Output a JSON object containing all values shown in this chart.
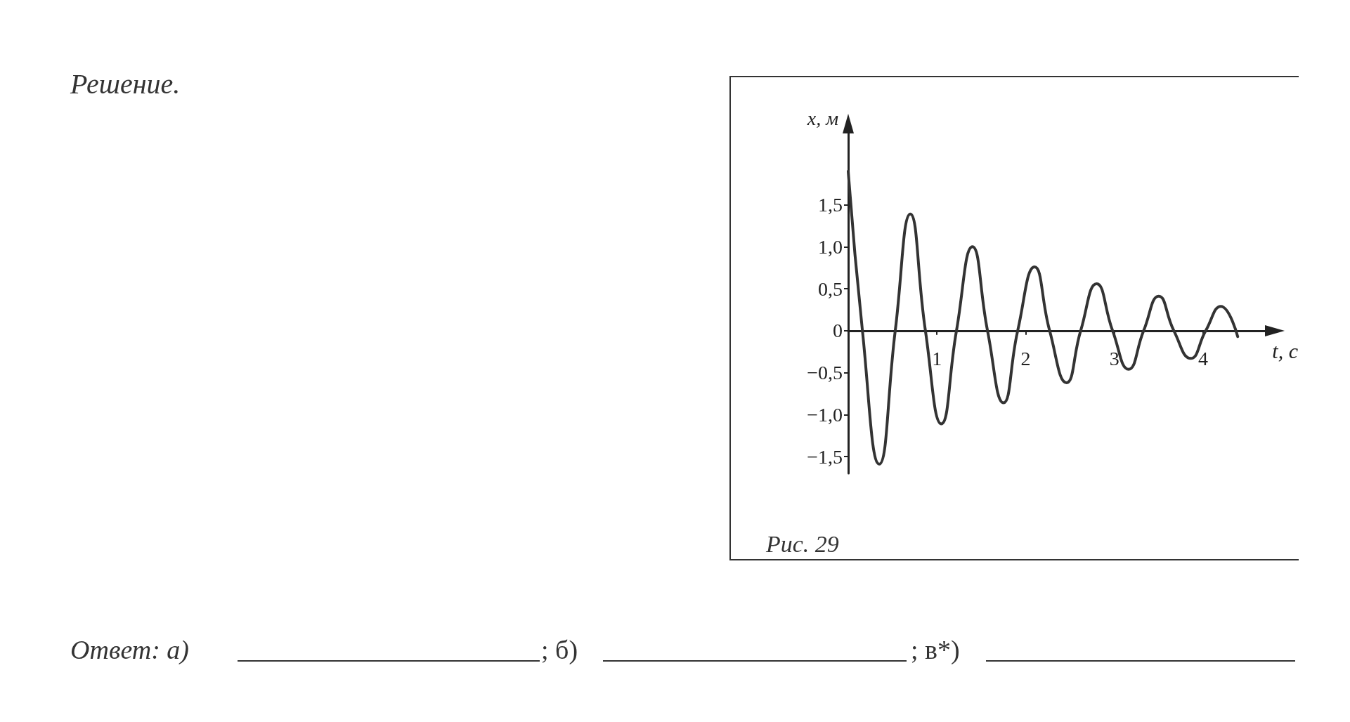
{
  "chart_data": {
    "type": "line",
    "xlabel": "t, с",
    "ylabel": "x, м",
    "x": [
      0,
      0.16,
      0.35,
      0.53,
      0.7,
      0.87,
      1.05,
      1.22,
      1.4,
      1.57,
      1.75,
      1.91,
      2.1,
      2.27,
      2.46,
      2.62,
      2.8,
      2.98,
      3.16,
      3.33,
      3.5,
      3.67,
      3.86,
      4.03,
      4.2,
      4.39
    ],
    "values": [
      1.9,
      0,
      -1.59,
      0,
      1.39,
      0,
      -1.11,
      0,
      1.0,
      0,
      -0.86,
      0,
      0.76,
      0,
      -0.62,
      0,
      0.56,
      0,
      -0.46,
      0,
      0.41,
      0,
      -0.33,
      0,
      0.29,
      -0.07
    ],
    "color": "#333333",
    "xlim": [
      0,
      4.7
    ],
    "ylim": [
      -1.7,
      2.35
    ],
    "xticks": [
      1,
      2,
      3,
      4
    ],
    "yticks": [
      {
        "value": -1.5,
        "label": "−1,5"
      },
      {
        "value": -1.0,
        "label": "−1,0"
      },
      {
        "value": -0.5,
        "label": "−0,5"
      },
      0,
      {
        "value": 0.5,
        "label": "0,5"
      },
      {
        "value": 1.0,
        "label": "1,0"
      },
      {
        "value": 1.5,
        "label": "1,5"
      }
    ],
    "marker": "none",
    "line_style": "solid",
    "grid": false,
    "annotations": [
      "Решение.",
      "Рис. 29",
      "Ответ: а)",
      "; б)",
      "; в*)"
    ]
  }
}
